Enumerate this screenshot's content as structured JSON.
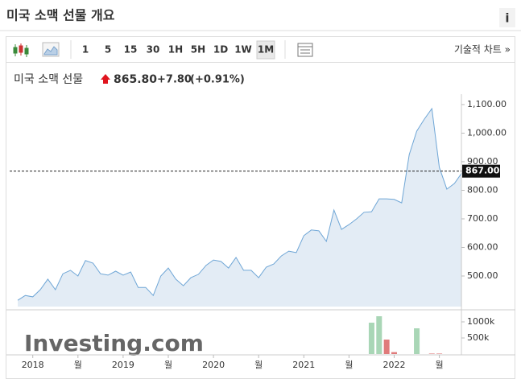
{
  "header": {
    "title": "미국 소맥 선물 개요",
    "info": "i"
  },
  "toolbar": {
    "timeframes": [
      "1",
      "5",
      "15",
      "30",
      "1H",
      "5H",
      "1D",
      "1W",
      "1M"
    ],
    "selected_index": 8,
    "technical": "기술적 차트 »"
  },
  "quote": {
    "name": "미국 소맥 선물",
    "price": "865.80",
    "change": "+7.80",
    "change_pct": "(+0.91%)"
  },
  "chart_data": {
    "type": "area",
    "color": "#6fa6d6",
    "fill": "#e3ecf5",
    "watermark": "Investing.com",
    "categories": [
      null,
      null,
      "2018",
      null,
      null,
      null,
      null,
      null,
      "월",
      null,
      null,
      null,
      null,
      null,
      "2019",
      null,
      null,
      null,
      null,
      null,
      "월",
      null,
      null,
      null,
      null,
      null,
      "2020",
      null,
      null,
      null,
      null,
      null,
      "월",
      null,
      null,
      null,
      null,
      null,
      "2021",
      null,
      null,
      null,
      null,
      null,
      "월",
      null,
      null,
      null,
      null,
      null,
      "2022",
      null,
      null,
      null,
      null,
      null,
      "월",
      null,
      null,
      null
    ],
    "values": [
      415,
      432,
      427,
      452,
      489,
      452,
      508,
      520,
      500,
      554,
      545,
      508,
      503,
      517,
      503,
      514,
      460,
      460,
      432,
      500,
      528,
      489,
      466,
      494,
      506,
      537,
      556,
      551,
      528,
      565,
      520,
      520,
      494,
      531,
      542,
      570,
      587,
      582,
      641,
      661,
      658,
      621,
      731,
      663,
      680,
      700,
      723,
      725,
      770,
      770,
      768,
      756,
      925,
      1007,
      1049,
      1086,
      880,
      804,
      824,
      861
    ],
    "ylim": [
      393,
      1128
    ],
    "yticks": [
      {
        "value": 500,
        "label": "500.00"
      },
      {
        "value": 600,
        "label": "600.00"
      },
      {
        "value": 700,
        "label": "700.00"
      },
      {
        "value": 800,
        "label": "800.00"
      },
      {
        "value": 900,
        "label": "900.00"
      },
      {
        "value": 1000,
        "label": "1,000.00"
      },
      {
        "value": 1100,
        "label": "1,100.00"
      }
    ],
    "current_price": {
      "value": 867,
      "label": "867.00"
    },
    "volume": {
      "values": [
        null,
        null,
        null,
        null,
        null,
        null,
        null,
        null,
        null,
        null,
        null,
        null,
        null,
        null,
        null,
        null,
        null,
        null,
        null,
        null,
        null,
        null,
        null,
        null,
        null,
        null,
        null,
        null,
        null,
        null,
        null,
        null,
        null,
        null,
        null,
        null,
        null,
        null,
        null,
        null,
        null,
        null,
        null,
        null,
        null,
        null,
        null,
        975000,
        1175000,
        450000,
        60000,
        null,
        null,
        800000,
        null,
        15000,
        15000,
        null,
        null,
        null
      ],
      "colors": [
        null,
        null,
        null,
        null,
        null,
        null,
        null,
        null,
        null,
        null,
        null,
        null,
        null,
        null,
        null,
        null,
        null,
        null,
        null,
        null,
        null,
        null,
        null,
        null,
        null,
        null,
        null,
        null,
        null,
        null,
        null,
        null,
        null,
        null,
        null,
        null,
        null,
        null,
        null,
        null,
        null,
        null,
        null,
        null,
        null,
        null,
        null,
        "#a9d6b6",
        "#a9d6b6",
        "#e07b7b",
        "#e07b7b",
        null,
        null,
        "#a9d6b6",
        null,
        "#e07b7b",
        "#e07b7b",
        null,
        null,
        null
      ],
      "vlim": [
        0,
        1375000
      ],
      "vticks": [
        {
          "value": 1000000,
          "label": "1000k"
        },
        {
          "value": 500000,
          "label": "500k"
        }
      ]
    },
    "grid": false
  }
}
